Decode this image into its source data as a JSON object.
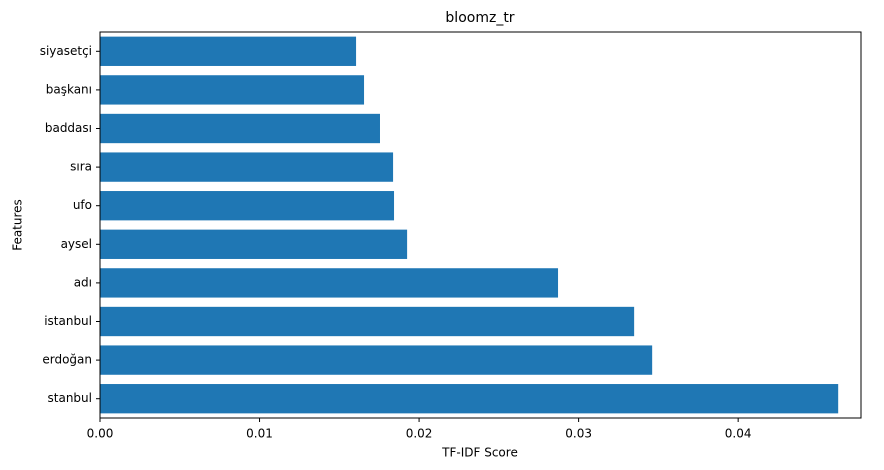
{
  "chart_data": {
    "type": "barh",
    "title": "bloomz_tr",
    "x_label": "TF-IDF Score",
    "y_label": "Features",
    "categories": [
      "stanbul",
      "erdoğan",
      "istanbul",
      "adı",
      "aysel",
      "ufo",
      "sıra",
      "baddası",
      "başkanı",
      "siyasetçi"
    ],
    "values": [
      0.04627,
      0.03461,
      0.03348,
      0.02871,
      0.01925,
      0.01843,
      0.01837,
      0.01755,
      0.01655,
      0.01605
    ],
    "color": "#1f77b4",
    "xlim": [
      0,
      0.0477
    ],
    "xticks": [
      {
        "value": 0,
        "label": "0.00"
      },
      {
        "value": 0.01,
        "label": "0.01"
      },
      {
        "value": 0.02,
        "label": "0.02"
      },
      {
        "value": 0.03,
        "label": "0.03"
      },
      {
        "value": 0.04,
        "label": "0.04"
      }
    ]
  }
}
